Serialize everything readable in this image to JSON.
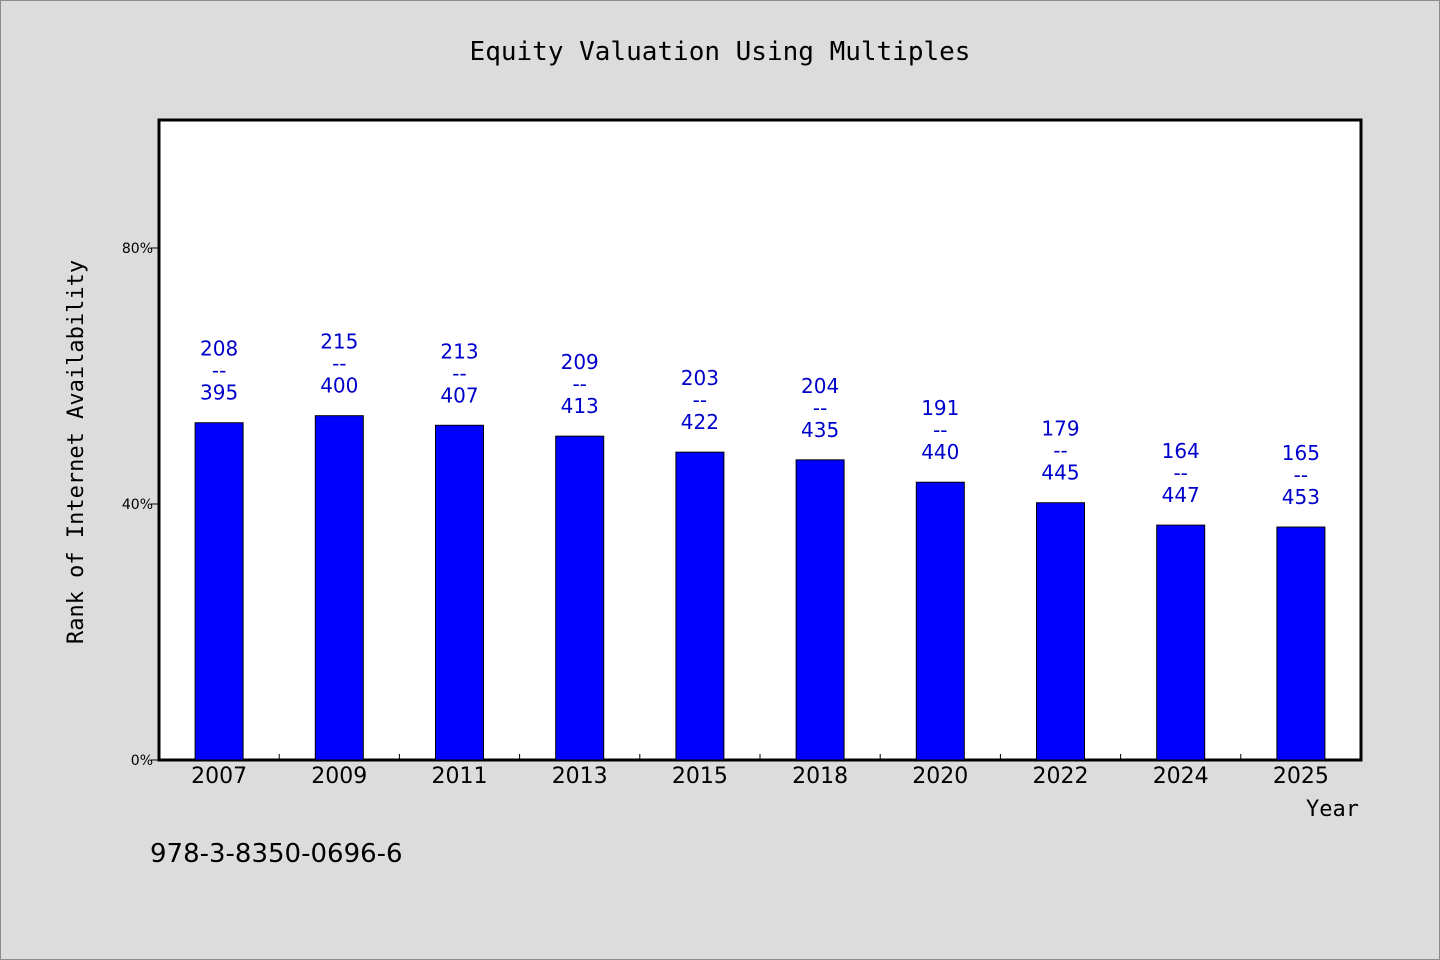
{
  "chart_data": {
    "type": "bar",
    "title": "Equity Valuation Using Multiples",
    "xlabel": "Year",
    "ylabel": "Rank of Internet Availability",
    "categories": [
      "2007",
      "2009",
      "2011",
      "2013",
      "2015",
      "2018",
      "2020",
      "2022",
      "2024",
      "2025"
    ],
    "values": [
      52.7,
      53.8,
      52.3,
      50.6,
      48.1,
      46.9,
      43.4,
      40.2,
      36.7,
      36.4
    ],
    "value_unit": "%",
    "data_labels": [
      [
        "208",
        "--",
        "395"
      ],
      [
        "215",
        "--",
        "400"
      ],
      [
        "213",
        "--",
        "407"
      ],
      [
        "209",
        "--",
        "413"
      ],
      [
        "203",
        "--",
        "422"
      ],
      [
        "204",
        "--",
        "435"
      ],
      [
        "191",
        "--",
        "440"
      ],
      [
        "179",
        "--",
        "445"
      ],
      [
        "164",
        "--",
        "447"
      ],
      [
        "165",
        "--",
        "453"
      ]
    ],
    "ylim": [
      0,
      100
    ],
    "yticks": [
      {
        "value": 0,
        "label": "0%"
      },
      {
        "value": 40,
        "label": "40%"
      },
      {
        "value": 80,
        "label": "80%"
      }
    ],
    "grid": false,
    "legend": "none",
    "colors": {
      "bar": "#0000ff",
      "bar_stroke": "#000000",
      "data_label": "#0000cc",
      "plot_bg": "#ffffff",
      "page_bg": "#dcdcdc"
    }
  },
  "footer": {
    "isbn": "978-3-8350-0696-6"
  }
}
